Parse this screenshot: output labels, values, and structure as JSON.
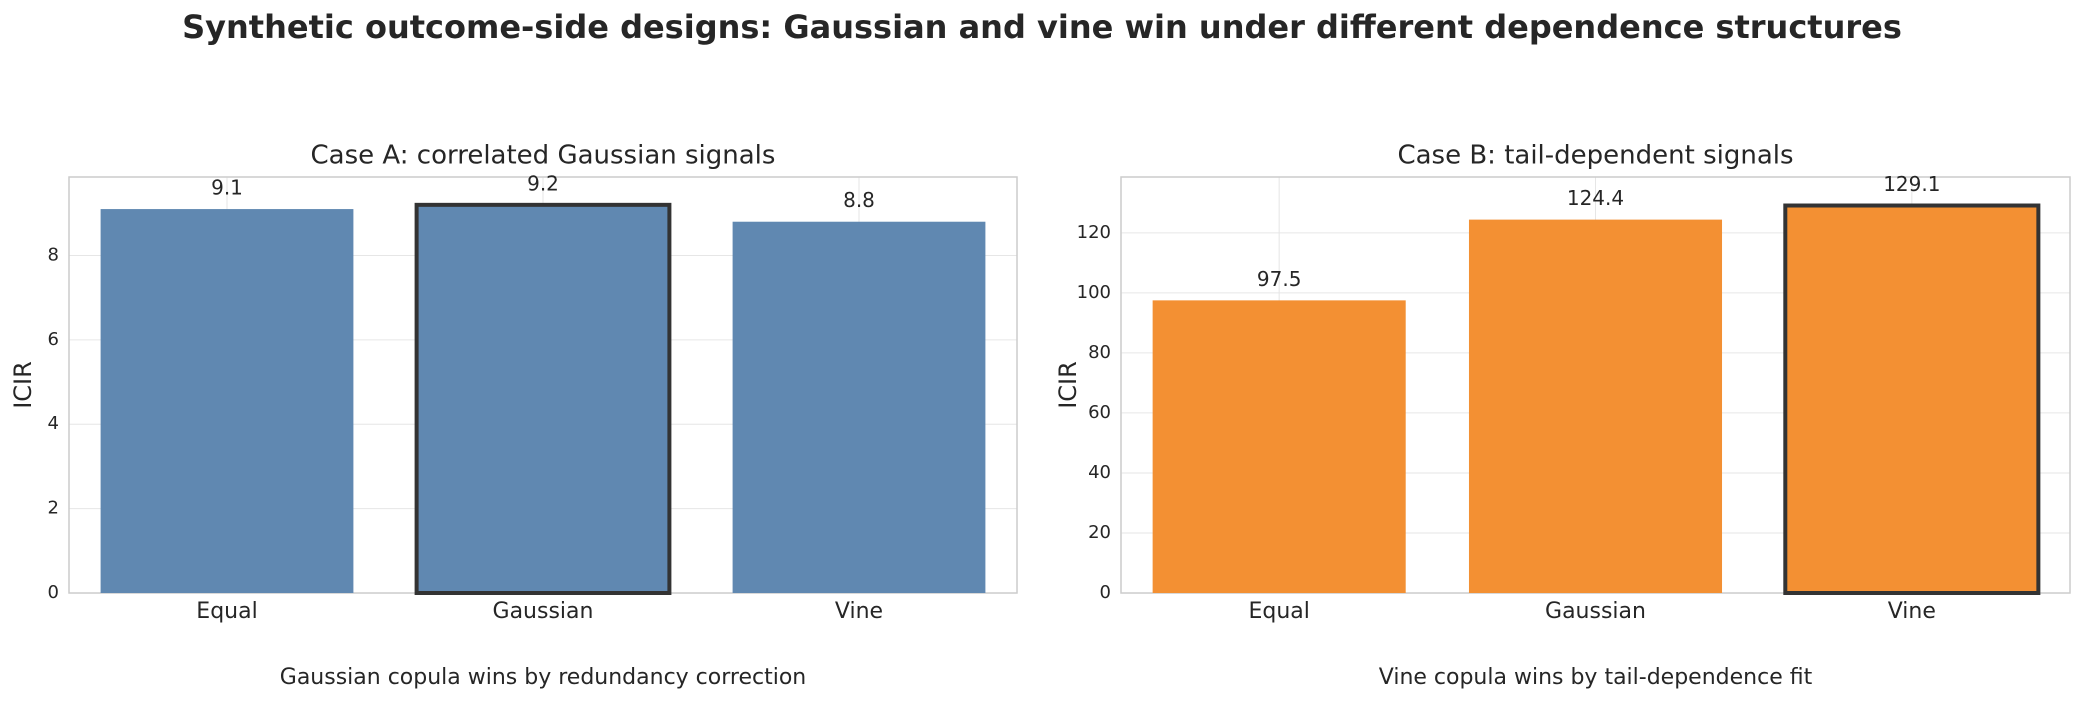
{
  "title": "Synthetic outcome-side designs: Gaussian and vine win under different dependence structures",
  "chart_data": [
    {
      "type": "bar",
      "title": "Case A: correlated Gaussian signals",
      "ylabel": "ICIR",
      "categories": [
        "Equal",
        "Gaussian",
        "Vine"
      ],
      "values": [
        9.1,
        9.2,
        8.8
      ],
      "color": "#6088b1",
      "highlight": 1,
      "ylim": [
        0,
        9.86
      ],
      "yticks": [
        0,
        2,
        4,
        6,
        8
      ],
      "grid": true,
      "annotation": "Gaussian copula wins by redundancy correction"
    },
    {
      "type": "bar",
      "title": "Case B: tail-dependent signals",
      "ylabel": "ICIR",
      "categories": [
        "Equal",
        "Gaussian",
        "Vine"
      ],
      "values": [
        97.5,
        124.4,
        129.1
      ],
      "color": "#f39033",
      "highlight": 2,
      "ylim": [
        0,
        138.6
      ],
      "yticks": [
        0,
        20,
        40,
        60,
        80,
        100,
        120
      ],
      "grid": true,
      "annotation": "Vine copula wins by tail-dependence fit"
    }
  ]
}
